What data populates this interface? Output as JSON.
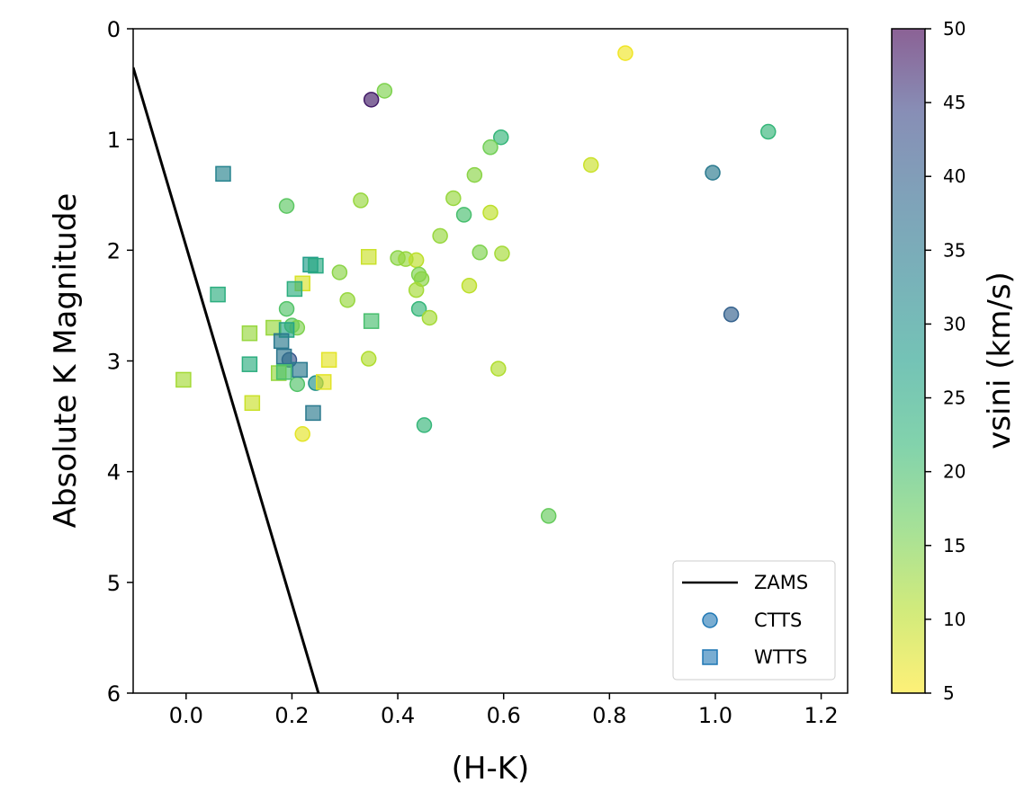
{
  "chart_data": {
    "type": "scatter",
    "xlabel": "(H-K)",
    "ylabel": "Absolute K Magnitude",
    "xlim": [
      -0.1,
      1.25
    ],
    "ylim": [
      6,
      0
    ],
    "y_inverted": true,
    "grid": false,
    "x_ticks": [
      "0.0",
      "0.2",
      "0.4",
      "0.6",
      "0.8",
      "1.0",
      "1.2"
    ],
    "x_tick_values": [
      0.0,
      0.2,
      0.4,
      0.6,
      0.8,
      1.0,
      1.2
    ],
    "y_ticks": [
      "0",
      "1",
      "2",
      "3",
      "4",
      "5",
      "6"
    ],
    "y_tick_values": [
      0,
      1,
      2,
      3,
      4,
      5,
      6
    ],
    "colorbar": {
      "label": "vsini (km/s)",
      "range": [
        5,
        50
      ],
      "colormap": "viridis_r",
      "ticks": [
        "5",
        "10",
        "15",
        "20",
        "25",
        "30",
        "35",
        "40",
        "45",
        "50"
      ],
      "tick_values": [
        5,
        10,
        15,
        20,
        25,
        30,
        35,
        40,
        45,
        50
      ]
    },
    "legend": {
      "placement": "lower-right",
      "entries": [
        "ZAMS",
        "CTTS",
        "WTTS"
      ]
    },
    "series": [
      {
        "name": "ZAMS",
        "kind": "line",
        "color": "#000000",
        "points": [
          [
            -0.1,
            0.35
          ],
          [
            0.25,
            6.0
          ]
        ]
      },
      {
        "name": "CTTS",
        "kind": "scatter",
        "marker": "circle",
        "legend_color": "#1f77b4",
        "points": [
          [
            0.83,
            0.22,
            6
          ],
          [
            0.375,
            0.56,
            15
          ],
          [
            0.35,
            0.64,
            48
          ],
          [
            1.1,
            0.93,
            22
          ],
          [
            0.595,
            0.98,
            22
          ],
          [
            0.575,
            1.07,
            16
          ],
          [
            0.765,
            1.23,
            9
          ],
          [
            0.995,
            1.3,
            35
          ],
          [
            0.545,
            1.32,
            14
          ],
          [
            0.505,
            1.53,
            13
          ],
          [
            0.33,
            1.55,
            13
          ],
          [
            0.19,
            1.6,
            18
          ],
          [
            0.525,
            1.68,
            20
          ],
          [
            0.575,
            1.66,
            10
          ],
          [
            0.48,
            1.87,
            13
          ],
          [
            0.555,
            2.02,
            15
          ],
          [
            0.597,
            2.03,
            12
          ],
          [
            0.4,
            2.07,
            14
          ],
          [
            0.415,
            2.08,
            13
          ],
          [
            0.435,
            2.09,
            10
          ],
          [
            0.29,
            2.2,
            14
          ],
          [
            0.44,
            2.22,
            15
          ],
          [
            0.445,
            2.26,
            14
          ],
          [
            0.435,
            2.36,
            12
          ],
          [
            0.535,
            2.32,
            10
          ],
          [
            0.305,
            2.45,
            13
          ],
          [
            0.19,
            2.53,
            19
          ],
          [
            0.44,
            2.53,
            22
          ],
          [
            0.46,
            2.61,
            12
          ],
          [
            1.03,
            2.58,
            40
          ],
          [
            0.2,
            2.68,
            18
          ],
          [
            0.21,
            2.7,
            15
          ],
          [
            0.195,
            2.99,
            42
          ],
          [
            0.345,
            2.98,
            11
          ],
          [
            0.59,
            3.07,
            11
          ],
          [
            0.245,
            3.2,
            30
          ],
          [
            0.21,
            3.21,
            19
          ],
          [
            0.45,
            3.58,
            22
          ],
          [
            0.22,
            3.66,
            7
          ],
          [
            0.685,
            4.4,
            17
          ]
        ]
      },
      {
        "name": "WTTS",
        "kind": "scatter",
        "marker": "square",
        "legend_color": "#1f77b4",
        "points": [
          [
            0.07,
            1.31,
            33
          ],
          [
            0.235,
            2.13,
            28
          ],
          [
            0.245,
            2.14,
            25
          ],
          [
            0.345,
            2.06,
            9
          ],
          [
            0.22,
            2.3,
            8
          ],
          [
            0.205,
            2.35,
            24
          ],
          [
            0.06,
            2.4,
            24
          ],
          [
            0.35,
            2.64,
            20
          ],
          [
            0.165,
            2.7,
            13
          ],
          [
            0.12,
            2.75,
            13
          ],
          [
            0.19,
            2.72,
            26
          ],
          [
            0.18,
            2.82,
            35
          ],
          [
            0.185,
            2.96,
            36
          ],
          [
            0.27,
            2.99,
            7
          ],
          [
            0.12,
            3.03,
            24
          ],
          [
            0.175,
            3.11,
            13
          ],
          [
            0.185,
            3.1,
            20
          ],
          [
            0.215,
            3.08,
            35
          ],
          [
            0.26,
            3.19,
            7
          ],
          [
            -0.005,
            3.17,
            12
          ],
          [
            0.125,
            3.38,
            9
          ],
          [
            0.24,
            3.47,
            35
          ]
        ]
      }
    ]
  }
}
